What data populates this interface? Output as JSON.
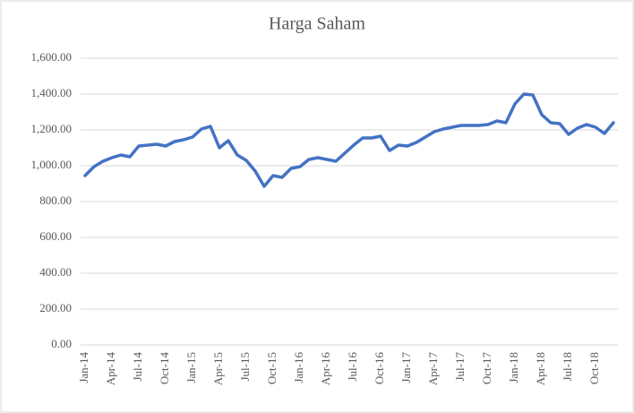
{
  "chart_data": {
    "type": "line",
    "title": "Harga Saham",
    "categories": [
      "Jan-14",
      null,
      null,
      "Apr-14",
      null,
      null,
      "Jul-14",
      null,
      null,
      "Oct-14",
      null,
      null,
      "Jan-15",
      null,
      null,
      "Apr-15",
      null,
      null,
      "Jul-15",
      null,
      null,
      "Oct-15",
      null,
      null,
      "Jan-16",
      null,
      null,
      "Apr-16",
      null,
      null,
      "Jul-16",
      null,
      null,
      "Oct-16",
      null,
      null,
      "Jan-17",
      null,
      null,
      "Apr-17",
      null,
      null,
      "Jul-17",
      null,
      null,
      "Oct-17",
      null,
      null,
      "Jan-18",
      null,
      null,
      "Apr-18",
      null,
      null,
      "Jul-18",
      null,
      null,
      "Oct-18",
      null,
      null
    ],
    "series": [
      {
        "color": "#4472c4",
        "values": [
          945,
          995,
          1025,
          1045,
          1060,
          1050,
          1110,
          1115,
          1120,
          1110,
          1135,
          1145,
          1160,
          1205,
          1220,
          1100,
          1140,
          1060,
          1030,
          970,
          885,
          945,
          935,
          985,
          995,
          1035,
          1045,
          1035,
          1025,
          1070,
          1115,
          1155,
          1155,
          1165,
          1085,
          1115,
          1110,
          1130,
          1160,
          1190,
          1205,
          1215,
          1225,
          1225,
          1225,
          1230,
          1250,
          1240,
          1345,
          1400,
          1395,
          1285,
          1240,
          1235,
          1175,
          1210,
          1230,
          1215,
          1180,
          1240
        ]
      }
    ],
    "ylim": [
      0,
      1600
    ],
    "yticks": [
      {
        "value": 0,
        "label": "0.00"
      },
      {
        "value": 200,
        "label": "200.00"
      },
      {
        "value": 400,
        "label": "400.00"
      },
      {
        "value": 600,
        "label": "600.00"
      },
      {
        "value": 800,
        "label": "800.00"
      },
      {
        "value": 1000,
        "label": "1,000.00"
      },
      {
        "value": 1200,
        "label": "1,200.00"
      },
      {
        "value": 1400,
        "label": "1,400.00"
      },
      {
        "value": 1600,
        "label": "1,600.00"
      }
    ],
    "grid": true
  }
}
